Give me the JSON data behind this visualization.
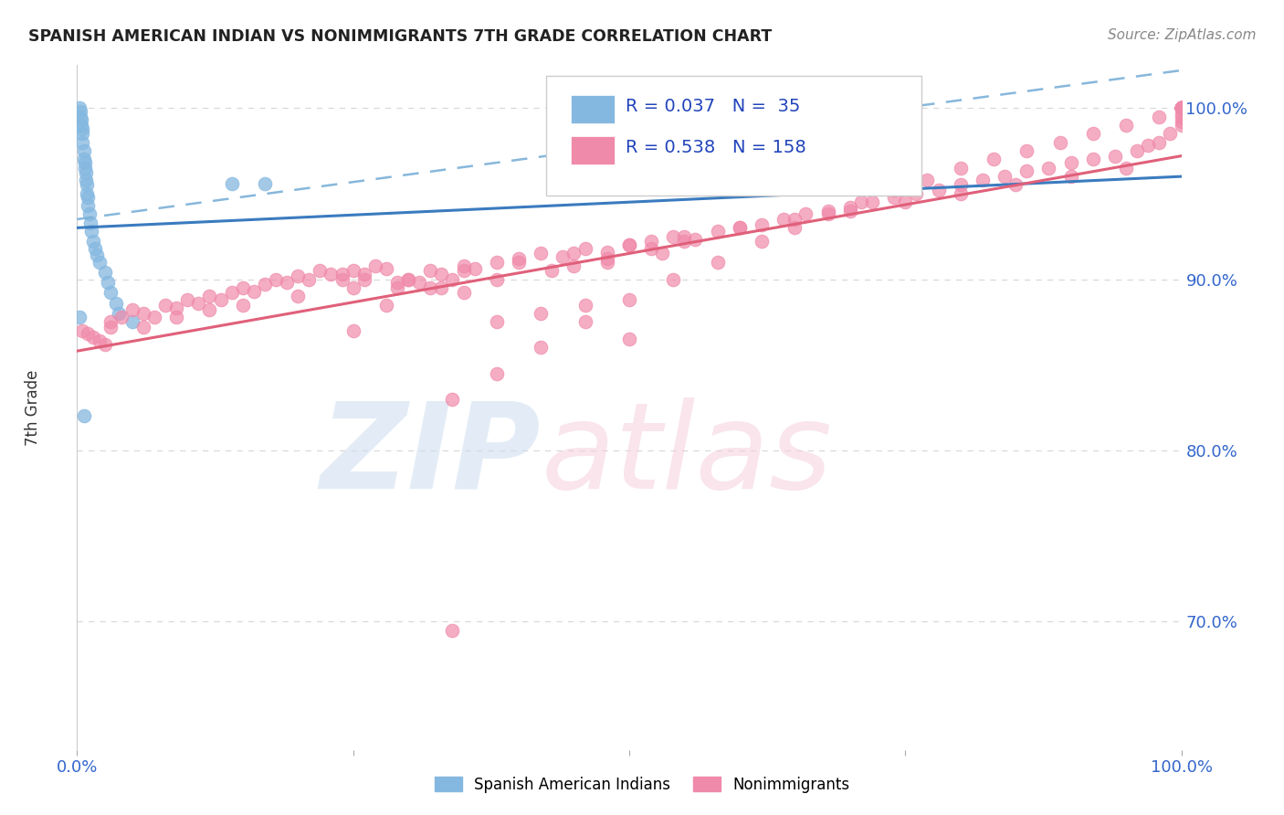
{
  "title": "SPANISH AMERICAN INDIAN VS NONIMMIGRANTS 7TH GRADE CORRELATION CHART",
  "source": "Source: ZipAtlas.com",
  "ylabel": "7th Grade",
  "xlim": [
    0.0,
    1.0
  ],
  "ylim": [
    0.625,
    1.025
  ],
  "yticks": [
    0.7,
    0.8,
    0.9,
    1.0
  ],
  "ytick_labels": [
    "70.0%",
    "80.0%",
    "90.0%",
    "100.0%"
  ],
  "bg_color": "#ffffff",
  "blue_color": "#85b8e0",
  "pink_color": "#f08aaa",
  "trendline_blue_solid": "#3a7bbf",
  "trendline_blue_dash": "#7ab0d8",
  "trendline_pink": "#e0607a",
  "grid_color": "#d8d8d8",
  "blue_x": [
    0.002,
    0.003,
    0.003,
    0.004,
    0.004,
    0.005,
    0.005,
    0.005,
    0.006,
    0.006,
    0.007,
    0.007,
    0.008,
    0.008,
    0.009,
    0.009,
    0.01,
    0.01,
    0.011,
    0.012,
    0.013,
    0.015,
    0.016,
    0.018,
    0.02,
    0.025,
    0.028,
    0.03,
    0.035,
    0.038,
    0.05,
    0.14,
    0.17,
    0.002,
    0.006
  ],
  "blue_y": [
    1.0,
    0.998,
    0.995,
    0.993,
    0.99,
    0.988,
    0.985,
    0.98,
    0.975,
    0.97,
    0.968,
    0.965,
    0.962,
    0.958,
    0.955,
    0.95,
    0.948,
    0.943,
    0.938,
    0.933,
    0.928,
    0.922,
    0.918,
    0.914,
    0.91,
    0.904,
    0.898,
    0.892,
    0.886,
    0.88,
    0.875,
    0.956,
    0.956,
    0.878,
    0.82
  ],
  "pink_x": [
    0.005,
    0.01,
    0.015,
    0.02,
    0.025,
    0.03,
    0.04,
    0.05,
    0.06,
    0.07,
    0.08,
    0.09,
    0.1,
    0.11,
    0.12,
    0.13,
    0.14,
    0.15,
    0.16,
    0.17,
    0.18,
    0.19,
    0.2,
    0.21,
    0.22,
    0.23,
    0.24,
    0.25,
    0.26,
    0.27,
    0.28,
    0.29,
    0.3,
    0.31,
    0.32,
    0.33,
    0.34,
    0.35,
    0.36,
    0.38,
    0.4,
    0.42,
    0.44,
    0.46,
    0.48,
    0.5,
    0.52,
    0.54,
    0.56,
    0.58,
    0.6,
    0.62,
    0.64,
    0.66,
    0.68,
    0.7,
    0.72,
    0.74,
    0.76,
    0.78,
    0.8,
    0.82,
    0.84,
    0.86,
    0.88,
    0.9,
    0.92,
    0.94,
    0.96,
    0.97,
    0.98,
    0.99,
    1.0,
    1.0,
    1.0,
    1.0,
    1.0,
    1.0,
    1.0,
    1.0,
    1.0,
    1.0,
    1.0,
    1.0,
    1.0,
    1.0,
    1.0,
    1.0,
    1.0,
    1.0,
    1.0,
    1.0,
    1.0,
    1.0,
    1.0,
    1.0,
    0.03,
    0.06,
    0.09,
    0.12,
    0.15,
    0.2,
    0.25,
    0.3,
    0.35,
    0.4,
    0.45,
    0.5,
    0.55,
    0.6,
    0.65,
    0.7,
    0.75,
    0.8,
    0.85,
    0.9,
    0.95,
    0.28,
    0.33,
    0.38,
    0.43,
    0.48,
    0.53,
    0.34,
    0.25,
    0.5,
    0.38,
    0.42,
    0.46,
    0.35,
    0.32,
    0.29,
    0.26,
    0.24,
    0.45,
    0.48,
    0.52,
    0.55,
    0.34,
    0.38,
    0.42,
    0.46,
    0.5,
    0.54,
    0.58,
    0.62,
    0.65,
    0.68,
    0.71,
    0.74,
    0.77,
    0.8,
    0.83,
    0.86,
    0.89,
    0.92,
    0.95,
    0.98
  ],
  "pink_y": [
    0.87,
    0.868,
    0.866,
    0.864,
    0.862,
    0.872,
    0.878,
    0.882,
    0.88,
    0.878,
    0.885,
    0.883,
    0.888,
    0.886,
    0.89,
    0.888,
    0.892,
    0.895,
    0.893,
    0.897,
    0.9,
    0.898,
    0.902,
    0.9,
    0.905,
    0.903,
    0.9,
    0.905,
    0.903,
    0.908,
    0.906,
    0.895,
    0.9,
    0.898,
    0.905,
    0.903,
    0.9,
    0.908,
    0.906,
    0.91,
    0.912,
    0.915,
    0.913,
    0.918,
    0.916,
    0.92,
    0.922,
    0.925,
    0.923,
    0.928,
    0.93,
    0.932,
    0.935,
    0.938,
    0.94,
    0.942,
    0.945,
    0.948,
    0.95,
    0.952,
    0.955,
    0.958,
    0.96,
    0.963,
    0.965,
    0.968,
    0.97,
    0.972,
    0.975,
    0.978,
    0.98,
    0.985,
    0.99,
    0.992,
    0.995,
    0.997,
    1.0,
    1.0,
    1.0,
    1.0,
    1.0,
    1.0,
    1.0,
    1.0,
    1.0,
    1.0,
    1.0,
    1.0,
    1.0,
    1.0,
    1.0,
    1.0,
    1.0,
    1.0,
    1.0,
    1.0,
    0.875,
    0.872,
    0.878,
    0.882,
    0.885,
    0.89,
    0.895,
    0.9,
    0.905,
    0.91,
    0.915,
    0.92,
    0.925,
    0.93,
    0.935,
    0.94,
    0.945,
    0.95,
    0.955,
    0.96,
    0.965,
    0.885,
    0.895,
    0.9,
    0.905,
    0.91,
    0.915,
    0.695,
    0.87,
    0.865,
    0.875,
    0.88,
    0.885,
    0.892,
    0.895,
    0.898,
    0.9,
    0.903,
    0.908,
    0.912,
    0.918,
    0.922,
    0.83,
    0.845,
    0.86,
    0.875,
    0.888,
    0.9,
    0.91,
    0.922,
    0.93,
    0.938,
    0.945,
    0.952,
    0.958,
    0.965,
    0.97,
    0.975,
    0.98,
    0.985,
    0.99,
    0.995
  ]
}
